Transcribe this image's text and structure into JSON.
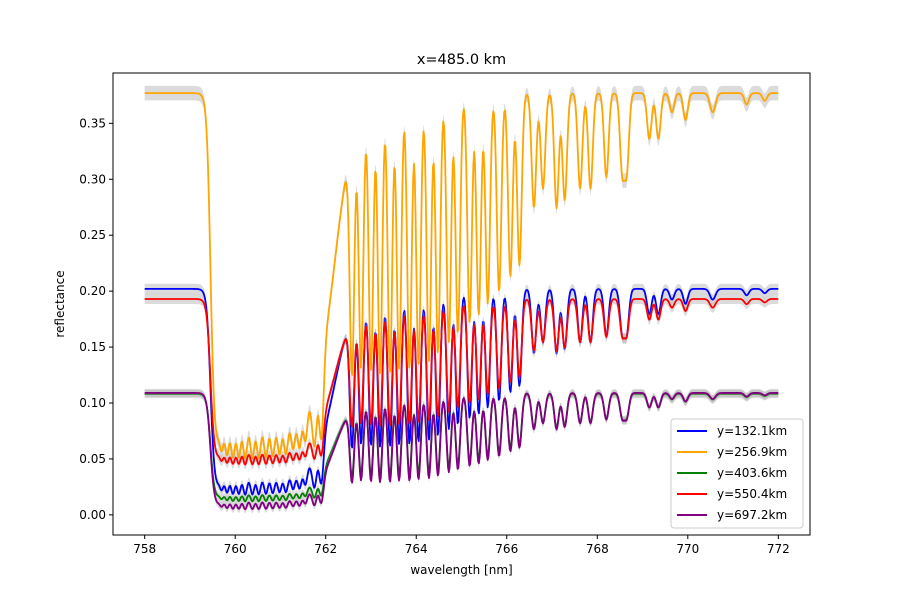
{
  "chart_data": {
    "type": "line",
    "title": "x=485.0 km",
    "xlabel": "wavelength [nm]",
    "ylabel": "reflectance",
    "xlim": [
      757.3,
      772.7
    ],
    "ylim": [
      -0.018,
      0.395
    ],
    "xticks": [
      758,
      760,
      762,
      764,
      766,
      768,
      770,
      772
    ],
    "yticks": [
      0.0,
      0.05,
      0.1,
      0.15,
      0.2,
      0.25,
      0.3,
      0.35
    ],
    "ytick_labels": [
      "0.00",
      "0.05",
      "0.10",
      "0.15",
      "0.20",
      "0.25",
      "0.30",
      "0.35"
    ],
    "grid": false,
    "legend_position": "lower-right",
    "band_shading": true,
    "series": [
      {
        "name": "y=132.1km",
        "color": "#0000ff",
        "continuum": 0.202,
        "trough": 0.018
      },
      {
        "name": "y=256.9km",
        "color": "#ffa500",
        "continuum": 0.377,
        "trough": 0.05
      },
      {
        "name": "y=403.6km",
        "color": "#008000",
        "continuum": 0.108,
        "trough": 0.012
      },
      {
        "name": "y=550.4km",
        "color": "#ff0000",
        "continuum": 0.193,
        "trough": 0.045
      },
      {
        "name": "y=697.2km",
        "color": "#800080",
        "continuum": 0.109,
        "trough": 0.005
      }
    ],
    "absorption_lines": [
      [
        759.6,
        0.25,
        0.05
      ],
      [
        759.7,
        0.45,
        0.04
      ],
      [
        759.82,
        0.55,
        0.04
      ],
      [
        759.95,
        0.6,
        0.04
      ],
      [
        760.08,
        0.6,
        0.04
      ],
      [
        760.22,
        0.63,
        0.04
      ],
      [
        760.38,
        0.62,
        0.04
      ],
      [
        760.52,
        0.62,
        0.04
      ],
      [
        760.68,
        0.6,
        0.04
      ],
      [
        760.83,
        0.58,
        0.04
      ],
      [
        760.98,
        0.55,
        0.04
      ],
      [
        761.12,
        0.56,
        0.04
      ],
      [
        761.28,
        0.48,
        0.04
      ],
      [
        761.42,
        0.5,
        0.04
      ],
      [
        761.55,
        0.45,
        0.04
      ],
      [
        761.75,
        0.65,
        0.05
      ],
      [
        761.9,
        0.68,
        0.05
      ],
      [
        762.58,
        0.7,
        0.05
      ],
      [
        762.78,
        0.7,
        0.05
      ],
      [
        763.0,
        0.72,
        0.05
      ],
      [
        763.2,
        0.73,
        0.05
      ],
      [
        763.42,
        0.73,
        0.05
      ],
      [
        763.62,
        0.72,
        0.05
      ],
      [
        763.85,
        0.72,
        0.05
      ],
      [
        764.05,
        0.71,
        0.05
      ],
      [
        764.28,
        0.7,
        0.05
      ],
      [
        764.48,
        0.68,
        0.05
      ],
      [
        764.72,
        0.65,
        0.05
      ],
      [
        764.92,
        0.63,
        0.05
      ],
      [
        765.18,
        0.6,
        0.05
      ],
      [
        765.38,
        0.58,
        0.05
      ],
      [
        765.58,
        0.55,
        0.05
      ],
      [
        765.83,
        0.52,
        0.05
      ],
      [
        766.08,
        0.48,
        0.05
      ],
      [
        766.28,
        0.45,
        0.05
      ],
      [
        766.6,
        0.3,
        0.05
      ],
      [
        766.8,
        0.25,
        0.05
      ],
      [
        767.1,
        0.3,
        0.05
      ],
      [
        767.28,
        0.28,
        0.05
      ],
      [
        767.62,
        0.25,
        0.05
      ],
      [
        767.85,
        0.25,
        0.05
      ],
      [
        768.2,
        0.22,
        0.05
      ],
      [
        768.55,
        0.2,
        0.05
      ],
      [
        768.65,
        0.2,
        0.05
      ],
      [
        769.15,
        0.12,
        0.05
      ],
      [
        769.35,
        0.12,
        0.05
      ],
      [
        769.65,
        0.05,
        0.05
      ],
      [
        769.95,
        0.07,
        0.05
      ],
      [
        770.55,
        0.05,
        0.06
      ],
      [
        771.3,
        0.03,
        0.05
      ],
      [
        771.7,
        0.02,
        0.05
      ]
    ]
  }
}
